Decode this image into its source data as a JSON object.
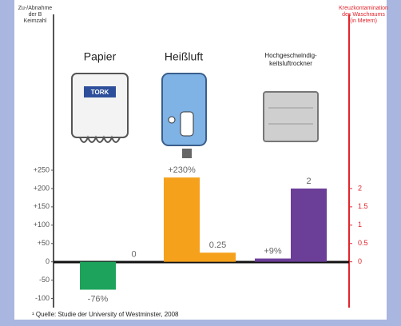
{
  "chart_data": {
    "type": "bar",
    "y_title": [
      "Zu-/Abnahme",
      "der B",
      "Keimzahl"
    ],
    "y2_title": [
      "Kreuzkontamination",
      "des Waschraums",
      "(in Metern)"
    ],
    "categories": [
      "Papier",
      "Heißluft",
      [
        "Hochgeschwindig-",
        "keitsluftrockner"
      ]
    ],
    "colors": [
      "#1ea35c",
      "#f5a11c",
      "#6b3e98"
    ],
    "series": [
      {
        "values": [
          -76,
          230,
          9
        ],
        "value_labels": [
          "-76%",
          "+230%",
          "+9%"
        ]
      },
      {
        "axis": "y2",
        "values": [
          0,
          0.25,
          2
        ]
      }
    ],
    "ylim": [
      -125,
      250
    ],
    "yticks": [
      {
        "value": 250,
        "label": "+250"
      },
      {
        "value": 200,
        "label": "+200"
      },
      {
        "value": 150,
        "label": "+150"
      },
      {
        "value": 100,
        "label": "+100"
      },
      {
        "value": 50,
        "label": "+50"
      },
      0,
      -50,
      -100
    ],
    "y2lim": [
      -1.25,
      2.5
    ],
    "y2ticks": [
      2,
      1.5,
      1,
      0.5,
      0
    ],
    "footnote": "¹ Quelle: Studie der University of Westminster, 2008"
  }
}
